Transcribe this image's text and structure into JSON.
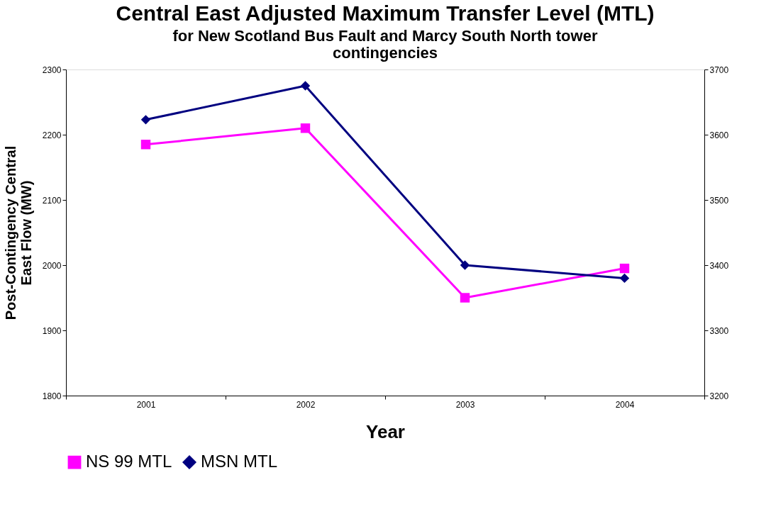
{
  "chart_data": {
    "type": "line",
    "title": "Central East Adjusted Maximum Transfer Level (MTL)",
    "subtitle": "for New Scotland Bus Fault and Marcy South North tower contingencies",
    "xlabel": "Year",
    "ylabel": "Post-Contingency Central East Flow (MW)",
    "categories": [
      "2001",
      "2002",
      "2003",
      "2004"
    ],
    "series": [
      {
        "name": "NS 99 MTL",
        "color": "#ff00ff",
        "marker": "square",
        "values": [
          2185,
          2210,
          1950,
          1995
        ]
      },
      {
        "name": "MSN MTL",
        "color": "#000080",
        "marker": "diamond",
        "axis": "y2",
        "values": [
          3623,
          3675,
          3400,
          3380
        ]
      }
    ],
    "ylim": [
      1800,
      2300
    ],
    "yticks": [
      1800,
      1900,
      2000,
      2100,
      2200,
      2300
    ],
    "y2lim": [
      3200,
      3700
    ],
    "y2ticks": [
      3200,
      3300,
      3400,
      3500,
      3600,
      3700
    ],
    "grid": false,
    "legend": "bottom",
    "line_style": "solid"
  }
}
